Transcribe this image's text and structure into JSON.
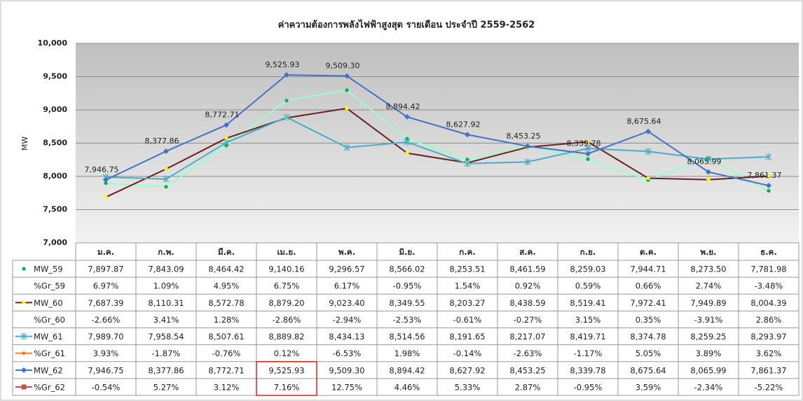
{
  "chart_data": {
    "type": "line",
    "title": "ค่าความต้องการพลังไฟฟ้าสูงสุด รายเดือน ประจำปี 2559-2562",
    "y_label": "MW",
    "categories": [
      "ม.ค.",
      "ก.พ.",
      "มี.ค.",
      "เม.ย.",
      "พ.ค.",
      "มิ.ย.",
      "ก.ค.",
      "ส.ค.",
      "ก.ย.",
      "ต.ค.",
      "พ.ย.",
      "ธ.ค."
    ],
    "ylim": [
      7000,
      10000
    ],
    "yticks": [
      {
        "value": 7000,
        "label": "7,000"
      },
      {
        "value": 7500,
        "label": "7,500"
      },
      {
        "value": 8000,
        "label": "8,000"
      },
      {
        "value": 8500,
        "label": "8,500"
      },
      {
        "value": 9000,
        "label": "9,000"
      },
      {
        "value": 9500,
        "label": "9,500"
      },
      {
        "value": 10000,
        "label": "10,000"
      }
    ],
    "grid": true,
    "series": [
      {
        "name": "MW_59",
        "color": "#99ffcc",
        "marker_color": "#00b050",
        "marker": "circle",
        "chart": true,
        "values": [
          7897.87,
          7843.09,
          8464.42,
          9140.16,
          9296.57,
          8566.02,
          8253.51,
          8461.59,
          8259.03,
          7944.71,
          8273.5,
          7781.98
        ],
        "value_labels": [
          "7,897.87",
          "7,843.09",
          "8,464.42",
          "9,140.16",
          "9,296.57",
          "8,566.02",
          "8,253.51",
          "8,461.59",
          "8,259.03",
          "7,944.71",
          "8,273.50",
          "7,781.98"
        ]
      },
      {
        "name": "%Gr_59",
        "chart": false,
        "values": [
          6.97,
          1.09,
          4.95,
          6.75,
          6.17,
          -0.95,
          1.54,
          0.92,
          0.59,
          0.66,
          2.74,
          -3.48
        ],
        "value_labels": [
          "6.97%",
          "1.09%",
          "4.95%",
          "6.75%",
          "6.17%",
          "-0.95%",
          "1.54%",
          "0.92%",
          "0.59%",
          "0.66%",
          "2.74%",
          "-3.48%"
        ]
      },
      {
        "name": "MW_60",
        "color": "#6b1f1f",
        "marker_color": "#ffff00",
        "marker": "circle",
        "chart": true,
        "values": [
          7687.39,
          8110.31,
          8572.78,
          8879.2,
          9023.4,
          8349.55,
          8203.27,
          8438.59,
          8519.41,
          7972.41,
          7949.89,
          8004.39
        ],
        "value_labels": [
          "7,687.39",
          "8,110.31",
          "8,572.78",
          "8,879.20",
          "9,023.40",
          "8,349.55",
          "8,203.27",
          "8,438.59",
          "8,519.41",
          "7,972.41",
          "7,949.89",
          "8,004.39"
        ]
      },
      {
        "name": "%Gr_60",
        "chart": false,
        "values": [
          -2.66,
          3.41,
          1.28,
          -2.86,
          -2.94,
          -2.53,
          -0.61,
          -0.27,
          3.15,
          0.35,
          -3.91,
          2.86
        ],
        "value_labels": [
          "-2.66%",
          "3.41%",
          "1.28%",
          "-2.86%",
          "-2.94%",
          "-2.53%",
          "-0.61%",
          "-0.27%",
          "3.15%",
          "0.35%",
          "-3.91%",
          "2.86%"
        ]
      },
      {
        "name": "MW_61",
        "color": "#4bacc6",
        "marker_color": "#4bacc6",
        "marker": "star",
        "chart": true,
        "values": [
          7989.7,
          7958.54,
          8507.61,
          8889.82,
          8434.13,
          8514.56,
          8191.65,
          8217.07,
          8419.71,
          8374.78,
          8259.25,
          8293.97
        ],
        "value_labels": [
          "7,989.70",
          "7,958.54",
          "8,507.61",
          "8,889.82",
          "8,434.13",
          "8,514.56",
          "8,191.65",
          "8,217.07",
          "8,419.71",
          "8,374.78",
          "8,259.25",
          "8,293.97"
        ]
      },
      {
        "name": "%Gr_61",
        "color": "#ed7d31",
        "marker_color": "#ed7d31",
        "marker": "circle",
        "chart": false,
        "values": [
          3.93,
          -1.87,
          -0.76,
          0.12,
          -6.53,
          1.98,
          -0.14,
          -2.63,
          -1.17,
          5.05,
          3.89,
          3.62
        ],
        "value_labels": [
          "3.93%",
          "-1.87%",
          "-0.76%",
          "0.12%",
          "-6.53%",
          "1.98%",
          "-0.14%",
          "-2.63%",
          "-1.17%",
          "5.05%",
          "3.89%",
          "3.62%"
        ]
      },
      {
        "name": "MW_62",
        "color": "#4472c4",
        "marker_color": "#4472c4",
        "marker": "diamond",
        "chart": true,
        "data_labels": true,
        "values": [
          7946.75,
          8377.86,
          8772.71,
          9525.93,
          9509.3,
          8894.42,
          8627.92,
          8453.25,
          8339.78,
          8675.64,
          8065.99,
          7861.37
        ],
        "value_labels": [
          "7,946.75",
          "8,377.86",
          "8,772.71",
          "9,525.93",
          "9,509.30",
          "8,894.42",
          "8,627.92",
          "8,453.25",
          "8,339.78",
          "8,675.64",
          "8,065.99",
          "7,861.37"
        ]
      },
      {
        "name": "%Gr_62",
        "color": "#c0504d",
        "marker_color": "#c0504d",
        "marker": "square",
        "chart": false,
        "values": [
          -0.54,
          5.27,
          3.12,
          7.16,
          12.75,
          4.46,
          5.33,
          2.87,
          -0.95,
          3.59,
          -2.34,
          -5.22
        ],
        "value_labels": [
          "-0.54%",
          "5.27%",
          "3.12%",
          "7.16%",
          "12.75%",
          "4.46%",
          "5.33%",
          "2.87%",
          "-0.95%",
          "3.59%",
          "-2.34%",
          "-5.22%"
        ]
      }
    ]
  }
}
